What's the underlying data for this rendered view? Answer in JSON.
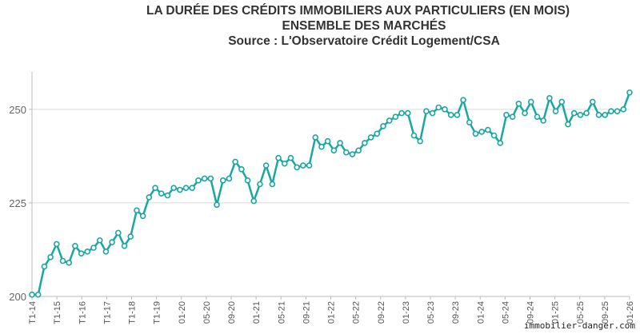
{
  "chart_data": {
    "type": "line",
    "title": "LA DURÉE DES CRÉDITS IMMOBILIERS AUX PARTICULIERS (EN MOIS)",
    "subtitle": "ENSEMBLE DES MARCHÉS",
    "source": "Source : L'Observatoire Crédit Logement/CSA",
    "xlabel": "",
    "ylabel": "",
    "ylim": [
      200,
      260
    ],
    "yticks": [
      200,
      225,
      250
    ],
    "grid": true,
    "x_tick_labels": [
      "T1-14",
      "T1-15",
      "T1-16",
      "T1-17",
      "T1-18",
      "T1-19",
      "01-20",
      "05-20",
      "09-20",
      "01-21",
      "05-21",
      "09-21",
      "01-22",
      "05-22",
      "09-22",
      "01-23",
      "05-23",
      "09-23",
      "01-24",
      "05-24",
      "09-24",
      "01-25",
      "05-25",
      "09-25",
      "01-26"
    ],
    "line_color": "#1aa7a0",
    "series": [
      {
        "values": [
          200.5,
          200.5,
          208,
          210.5,
          214,
          209.5,
          209,
          213.5,
          211.5,
          212,
          213,
          215,
          212,
          214.5,
          217,
          213.5,
          216,
          223,
          221.5,
          226.5,
          229,
          227.5,
          227,
          229,
          228.5,
          229,
          229,
          231,
          231.5,
          231.5,
          224.5,
          231,
          231.5,
          236,
          234,
          231,
          225.5,
          230,
          235,
          230,
          237,
          235.5,
          237,
          234.5,
          235,
          235,
          242.5,
          240,
          241.5,
          239,
          241,
          238.5,
          238,
          239,
          241,
          242.5,
          243.5,
          245.5,
          247,
          248,
          249,
          249,
          243,
          241.5,
          249.5,
          249,
          250.5,
          250,
          248.5,
          248.5,
          252.5,
          246.5,
          243.5,
          244,
          244.5,
          243,
          241,
          248.5,
          248,
          251.5,
          249,
          252,
          248,
          247,
          253,
          249.5,
          252,
          246,
          249,
          248.5,
          249,
          252,
          248.5,
          248.5,
          249.5,
          249.5,
          250,
          254.5
        ]
      }
    ]
  },
  "watermark": "immobilier-danger.com"
}
